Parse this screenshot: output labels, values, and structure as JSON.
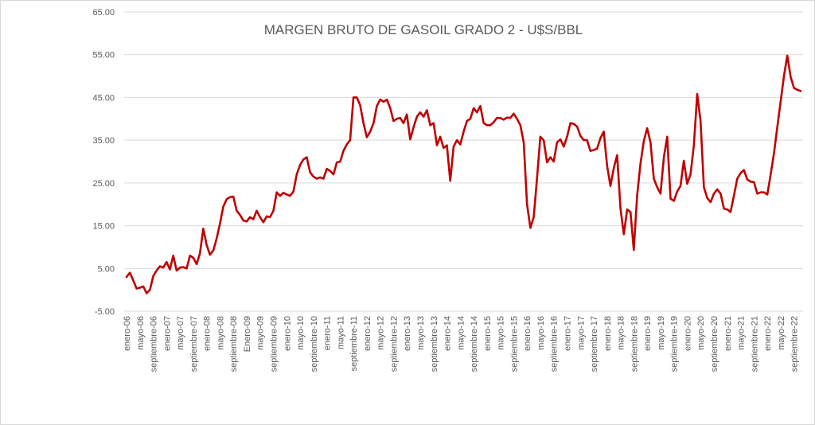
{
  "chart_data": {
    "type": "line",
    "title": "MARGEN BRUTO DE GASOIL GRADO 2 - U$S/BBL",
    "xlabel": "",
    "ylabel": "",
    "ylim": [
      -5,
      65
    ],
    "yticks": [
      -5,
      5,
      15,
      25,
      35,
      45,
      55,
      65
    ],
    "ytick_labels": [
      "-5.00",
      "5.00",
      "15.00",
      "25.00",
      "35.00",
      "45.00",
      "55.00",
      "65.00"
    ],
    "grid": true,
    "legend": "none",
    "line_color": "#c00000",
    "x_start": "2006-01",
    "xtick_labels": [
      {
        "i": 0,
        "label": "enero-06"
      },
      {
        "i": 4,
        "label": "mayo-06"
      },
      {
        "i": 8,
        "label": "septiembre-06"
      },
      {
        "i": 12,
        "label": "enero-07"
      },
      {
        "i": 16,
        "label": "mayo-07"
      },
      {
        "i": 20,
        "label": "septiembre-07"
      },
      {
        "i": 24,
        "label": "enero-08"
      },
      {
        "i": 28,
        "label": "mayo-08"
      },
      {
        "i": 32,
        "label": "septiembre-08"
      },
      {
        "i": 36,
        "label": "Enero-09"
      },
      {
        "i": 40,
        "label": "mayo-09"
      },
      {
        "i": 44,
        "label": "septiembre-09"
      },
      {
        "i": 48,
        "label": "enero-10"
      },
      {
        "i": 52,
        "label": "mayo-10"
      },
      {
        "i": 56,
        "label": "septiembre-10"
      },
      {
        "i": 60,
        "label": "enero-11"
      },
      {
        "i": 64,
        "label": "mayo-11"
      },
      {
        "i": 68,
        "label": "septiembre-11"
      },
      {
        "i": 72,
        "label": "enero-12"
      },
      {
        "i": 76,
        "label": "mayo-12"
      },
      {
        "i": 80,
        "label": "septiembre-12"
      },
      {
        "i": 84,
        "label": "enero-13"
      },
      {
        "i": 88,
        "label": "mayo-13"
      },
      {
        "i": 92,
        "label": "septiembre-13"
      },
      {
        "i": 96,
        "label": "enero-14"
      },
      {
        "i": 100,
        "label": "mayo-14"
      },
      {
        "i": 104,
        "label": "septiembre-14"
      },
      {
        "i": 108,
        "label": "enero-15"
      },
      {
        "i": 112,
        "label": "mayo-15"
      },
      {
        "i": 116,
        "label": "septiembre-15"
      },
      {
        "i": 120,
        "label": "enero-16"
      },
      {
        "i": 124,
        "label": "mayo-16"
      },
      {
        "i": 128,
        "label": "septiembre-16"
      },
      {
        "i": 132,
        "label": "enero-17"
      },
      {
        "i": 136,
        "label": "mayo-17"
      },
      {
        "i": 140,
        "label": "septiembre-17"
      },
      {
        "i": 144,
        "label": "enero-18"
      },
      {
        "i": 148,
        "label": "mayo-18"
      },
      {
        "i": 152,
        "label": "septiembre-18"
      },
      {
        "i": 156,
        "label": "enero-19"
      },
      {
        "i": 160,
        "label": "mayo-19"
      },
      {
        "i": 164,
        "label": "septiembre-19"
      },
      {
        "i": 168,
        "label": "enero-20"
      },
      {
        "i": 172,
        "label": "mayo-20"
      },
      {
        "i": 176,
        "label": "septiembre-20"
      },
      {
        "i": 180,
        "label": "enero-21"
      },
      {
        "i": 184,
        "label": "mayo-21"
      },
      {
        "i": 188,
        "label": "septiembre-21"
      },
      {
        "i": 192,
        "label": "enero-22"
      },
      {
        "i": 196,
        "label": "mayo-22"
      },
      {
        "i": 200,
        "label": "septiembre-22"
      }
    ],
    "series": [
      {
        "values": [
          3.0,
          4.0,
          2.2,
          0.3,
          0.5,
          0.8,
          -0.8,
          0.0,
          3.2,
          4.5,
          5.5,
          5.2,
          6.5,
          4.8,
          8.0,
          4.5,
          5.2,
          5.3,
          5.0,
          8.0,
          7.5,
          6.0,
          8.5,
          14.3,
          10.5,
          8.2,
          9.2,
          12.0,
          15.5,
          19.5,
          21.2,
          21.7,
          21.8,
          18.5,
          17.5,
          16.2,
          16.0,
          17.0,
          16.5,
          18.5,
          17.0,
          15.8,
          17.2,
          17.0,
          18.5,
          22.8,
          22.0,
          22.7,
          22.3,
          22.0,
          23.0,
          27.0,
          29.2,
          30.5,
          31.0,
          27.5,
          26.5,
          26.0,
          26.3,
          26.0,
          28.3,
          27.8,
          27.0,
          29.8,
          30.0,
          32.5,
          34.0,
          35.0,
          45.0,
          45.0,
          43.2,
          39.0,
          35.7,
          37.0,
          39.0,
          43.0,
          44.5,
          44.0,
          44.5,
          42.5,
          39.5,
          40.0,
          40.2,
          39.0,
          41.0,
          35.2,
          38.0,
          40.5,
          41.5,
          40.5,
          42.0,
          38.5,
          39.0,
          33.8,
          35.8,
          33.2,
          33.8,
          25.5,
          33.5,
          35.0,
          34.0,
          37.0,
          39.5,
          40.0,
          42.5,
          41.5,
          43.0,
          39.0,
          38.5,
          38.5,
          39.2,
          40.2,
          40.2,
          39.8,
          40.3,
          40.2,
          41.2,
          40.0,
          38.5,
          34.5,
          20.0,
          14.5,
          17.0,
          26.0,
          35.8,
          35.0,
          29.8,
          31.0,
          30.0,
          34.5,
          35.2,
          33.5,
          35.8,
          39.0,
          38.8,
          38.2,
          36.0,
          35.0,
          35.0,
          32.5,
          32.7,
          33.0,
          35.5,
          37.0,
          29.0,
          24.3,
          28.5,
          31.5,
          19.0,
          13.0,
          18.8,
          18.2,
          9.3,
          22.0,
          29.5,
          34.8,
          37.8,
          34.5,
          26.0,
          24.0,
          22.5,
          31.0,
          35.8,
          21.3,
          20.8,
          23.0,
          24.3,
          30.2,
          24.8,
          27.0,
          33.8,
          45.8,
          39.5,
          24.0,
          21.5,
          20.5,
          22.5,
          23.5,
          22.5,
          19.0,
          18.8,
          18.2,
          22.0,
          26.0,
          27.3,
          28.0,
          25.8,
          25.3,
          25.2,
          22.5,
          22.8,
          22.8,
          22.3,
          27.0,
          32.0,
          38.0,
          44.0,
          50.0,
          54.8,
          49.8,
          47.2,
          46.8,
          46.5
        ]
      }
    ]
  }
}
